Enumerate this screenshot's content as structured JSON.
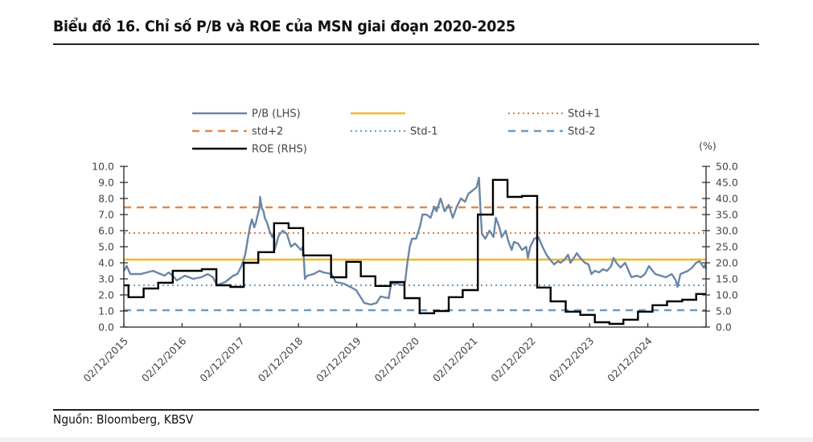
{
  "title": "Biểu đồ 16. Chỉ số P/B và ROE của MSN giai đoạn 2020-2025",
  "source": "Nguồn: Bloomberg, KBSV",
  "chart_data": {
    "type": "line",
    "title": "Biểu đồ 16. Chỉ số P/B và ROE của MSN giai đoạn 2020-2025",
    "xlabel": "",
    "ylabel_left": "P/B (LHS)",
    "ylabel_right": "(%)",
    "x_range": [
      2015.92,
      2025.92
    ],
    "ylim_left": [
      0,
      10
    ],
    "ylim_right": [
      0,
      50
    ],
    "yticks_left": [
      "0.0",
      "1.0",
      "2.0",
      "3.0",
      "4.0",
      "5.0",
      "6.0",
      "7.0",
      "8.0",
      "9.0",
      "10.0"
    ],
    "yticks_right": [
      "0.0",
      "5.0",
      "10.0",
      "15.0",
      "20.0",
      "25.0",
      "30.0",
      "35.0",
      "40.0",
      "45.0",
      "50.0"
    ],
    "xticks": [
      {
        "label": "02/12/2015",
        "year": 2015.92
      },
      {
        "label": "02/12/2016",
        "year": 2016.92
      },
      {
        "label": "02/12/2017",
        "year": 2017.92
      },
      {
        "label": "02/12/2018",
        "year": 2018.92
      },
      {
        "label": "02/12/2019",
        "year": 2019.92
      },
      {
        "label": "02/12/2020",
        "year": 2020.92
      },
      {
        "label": "02/12/2021",
        "year": 2021.92
      },
      {
        "label": "02/12/2022",
        "year": 2022.92
      },
      {
        "label": "02/12/2023",
        "year": 2023.92
      },
      {
        "label": "02/12/2024",
        "year": 2024.92
      }
    ],
    "grid": false,
    "legend_position": "top",
    "colors": {
      "pb": "#6a86a8",
      "mean": "#f2b826",
      "std_plus_1": "#e07b3c",
      "std_plus_2": "#e08a4c",
      "std_minus_1": "#6a9cc6",
      "std_minus_2": "#6a9cc6",
      "roe": "#000000"
    },
    "legend": [
      {
        "key": "pb",
        "label": "P/B (LHS)",
        "style": "solid"
      },
      {
        "key": "mean",
        "label": "",
        "style": "solid"
      },
      {
        "key": "std_plus_1",
        "label": "Std+1",
        "style": "dotted"
      },
      {
        "key": "std_plus_2",
        "label": "std+2",
        "style": "dashed"
      },
      {
        "key": "std_minus_1",
        "label": "Std-1",
        "style": "dotted"
      },
      {
        "key": "std_minus_2",
        "label": "Std-2",
        "style": "dashed"
      },
      {
        "key": "roe",
        "label": "ROE (RHS)",
        "style": "solid"
      }
    ],
    "reference_lines": {
      "mean": 4.2,
      "std_plus_1": 5.85,
      "std_plus_2": 7.45,
      "std_minus_1": 2.6,
      "std_minus_2": 1.05
    },
    "series": [
      {
        "name": "P/B (LHS)",
        "axis": "left",
        "points": [
          [
            2015.92,
            3.5
          ],
          [
            2015.97,
            3.8
          ],
          [
            2016.03,
            3.3
          ],
          [
            2016.21,
            3.3
          ],
          [
            2016.42,
            3.5
          ],
          [
            2016.55,
            3.3
          ],
          [
            2016.62,
            3.2
          ],
          [
            2016.69,
            3.4
          ],
          [
            2016.76,
            3.2
          ],
          [
            2016.83,
            2.9
          ],
          [
            2016.97,
            3.2
          ],
          [
            2017.11,
            3.0
          ],
          [
            2017.25,
            3.1
          ],
          [
            2017.36,
            3.3
          ],
          [
            2017.45,
            3.1
          ],
          [
            2017.52,
            2.6
          ],
          [
            2017.66,
            2.8
          ],
          [
            2017.8,
            3.2
          ],
          [
            2017.87,
            3.3
          ],
          [
            2017.94,
            3.8
          ],
          [
            2017.98,
            4.2
          ],
          [
            2018.01,
            4.6
          ],
          [
            2018.05,
            5.5
          ],
          [
            2018.09,
            6.3
          ],
          [
            2018.12,
            6.7
          ],
          [
            2018.16,
            6.2
          ],
          [
            2018.19,
            6.5
          ],
          [
            2018.22,
            7.0
          ],
          [
            2018.25,
            7.4
          ],
          [
            2018.26,
            8.1
          ],
          [
            2018.29,
            7.4
          ],
          [
            2018.32,
            7.2
          ],
          [
            2018.34,
            6.8
          ],
          [
            2018.38,
            6.5
          ],
          [
            2018.42,
            6.0
          ],
          [
            2018.47,
            5.6
          ],
          [
            2018.5,
            5.9
          ],
          [
            2018.51,
            4.8
          ],
          [
            2018.58,
            5.7
          ],
          [
            2018.65,
            6.0
          ],
          [
            2018.72,
            5.8
          ],
          [
            2018.79,
            5.0
          ],
          [
            2018.86,
            5.2
          ],
          [
            2018.96,
            4.8
          ],
          [
            2019.0,
            5.0
          ],
          [
            2019.03,
            3.0
          ],
          [
            2019.07,
            3.2
          ],
          [
            2019.18,
            3.3
          ],
          [
            2019.28,
            3.5
          ],
          [
            2019.35,
            3.4
          ],
          [
            2019.49,
            3.3
          ],
          [
            2019.56,
            2.8
          ],
          [
            2019.7,
            2.7
          ],
          [
            2019.81,
            2.5
          ],
          [
            2019.91,
            2.3
          ],
          [
            2019.98,
            1.9
          ],
          [
            2020.05,
            1.5
          ],
          [
            2020.16,
            1.4
          ],
          [
            2020.26,
            1.5
          ],
          [
            2020.33,
            1.9
          ],
          [
            2020.47,
            1.8
          ],
          [
            2020.51,
            2.7
          ],
          [
            2020.61,
            2.7
          ],
          [
            2020.71,
            2.6
          ],
          [
            2020.75,
            2.8
          ],
          [
            2020.79,
            4.0
          ],
          [
            2020.83,
            5.0
          ],
          [
            2020.87,
            5.5
          ],
          [
            2020.94,
            5.5
          ],
          [
            2021.01,
            6.3
          ],
          [
            2021.05,
            7.0
          ],
          [
            2021.12,
            7.0
          ],
          [
            2021.19,
            6.8
          ],
          [
            2021.25,
            7.5
          ],
          [
            2021.29,
            7.2
          ],
          [
            2021.36,
            8.0
          ],
          [
            2021.43,
            7.2
          ],
          [
            2021.5,
            7.6
          ],
          [
            2021.57,
            6.8
          ],
          [
            2021.64,
            7.5
          ],
          [
            2021.71,
            8.0
          ],
          [
            2021.78,
            7.8
          ],
          [
            2021.84,
            8.3
          ],
          [
            2021.91,
            8.5
          ],
          [
            2021.98,
            8.7
          ],
          [
            2022.02,
            9.3
          ],
          [
            2022.05,
            7.0
          ],
          [
            2022.07,
            5.8
          ],
          [
            2022.13,
            5.5
          ],
          [
            2022.2,
            6.0
          ],
          [
            2022.27,
            5.6
          ],
          [
            2022.31,
            6.8
          ],
          [
            2022.37,
            6.2
          ],
          [
            2022.41,
            5.6
          ],
          [
            2022.48,
            6.0
          ],
          [
            2022.52,
            5.4
          ],
          [
            2022.58,
            4.8
          ],
          [
            2022.62,
            5.3
          ],
          [
            2022.69,
            5.2
          ],
          [
            2022.76,
            4.8
          ],
          [
            2022.83,
            5.0
          ],
          [
            2022.86,
            4.3
          ],
          [
            2022.9,
            5.0
          ],
          [
            2022.97,
            5.5
          ],
          [
            2023.04,
            5.6
          ],
          [
            2023.11,
            5.0
          ],
          [
            2023.18,
            4.5
          ],
          [
            2023.24,
            4.2
          ],
          [
            2023.31,
            3.9
          ],
          [
            2023.38,
            4.1
          ],
          [
            2023.42,
            4.0
          ],
          [
            2023.49,
            4.2
          ],
          [
            2023.55,
            4.5
          ],
          [
            2023.59,
            4.0
          ],
          [
            2023.63,
            4.2
          ],
          [
            2023.7,
            4.6
          ],
          [
            2023.76,
            4.3
          ],
          [
            2023.84,
            4.0
          ],
          [
            2023.9,
            3.9
          ],
          [
            2023.95,
            3.3
          ],
          [
            2024.01,
            3.5
          ],
          [
            2024.08,
            3.4
          ],
          [
            2024.15,
            3.6
          ],
          [
            2024.22,
            3.5
          ],
          [
            2024.29,
            3.8
          ],
          [
            2024.33,
            4.3
          ],
          [
            2024.38,
            4.0
          ],
          [
            2024.45,
            3.7
          ],
          [
            2024.53,
            4.0
          ],
          [
            2024.59,
            3.5
          ],
          [
            2024.64,
            3.1
          ],
          [
            2024.73,
            3.2
          ],
          [
            2024.8,
            3.1
          ],
          [
            2024.87,
            3.3
          ],
          [
            2024.94,
            3.8
          ],
          [
            2024.98,
            3.6
          ],
          [
            2025.05,
            3.3
          ],
          [
            2025.14,
            3.2
          ],
          [
            2025.23,
            3.1
          ],
          [
            2025.33,
            3.3
          ],
          [
            2025.4,
            2.9
          ],
          [
            2025.43,
            2.5
          ],
          [
            2025.48,
            3.3
          ],
          [
            2025.61,
            3.5
          ],
          [
            2025.68,
            3.7
          ],
          [
            2025.75,
            4.0
          ],
          [
            2025.81,
            4.1
          ],
          [
            2025.88,
            3.7
          ],
          [
            2025.91,
            3.9
          ],
          [
            2025.92,
            3.6
          ]
        ]
      },
      {
        "name": "ROE (RHS)",
        "axis": "right",
        "type": "step",
        "steps": [
          [
            2015.92,
            13.0
          ],
          [
            2016.0,
            9.3
          ],
          [
            2016.26,
            12.0
          ],
          [
            2016.51,
            13.8
          ],
          [
            2016.76,
            17.5
          ],
          [
            2017.26,
            18.0
          ],
          [
            2017.51,
            13.0
          ],
          [
            2017.75,
            12.5
          ],
          [
            2017.98,
            20.0
          ],
          [
            2018.23,
            23.3
          ],
          [
            2018.5,
            32.3
          ],
          [
            2018.75,
            30.8
          ],
          [
            2019.0,
            22.3
          ],
          [
            2019.48,
            15.5
          ],
          [
            2019.74,
            20.3
          ],
          [
            2019.99,
            15.8
          ],
          [
            2020.24,
            12.8
          ],
          [
            2020.5,
            14.0
          ],
          [
            2020.74,
            9.0
          ],
          [
            2021.0,
            4.3
          ],
          [
            2021.25,
            5.0
          ],
          [
            2021.5,
            9.3
          ],
          [
            2021.74,
            11.5
          ],
          [
            2022.0,
            35.0
          ],
          [
            2022.26,
            45.8
          ],
          [
            2022.51,
            40.5
          ],
          [
            2022.76,
            40.8
          ],
          [
            2023.02,
            12.3
          ],
          [
            2023.25,
            8.0
          ],
          [
            2023.51,
            4.8
          ],
          [
            2023.76,
            3.8
          ],
          [
            2024.01,
            1.5
          ],
          [
            2024.26,
            1.0
          ],
          [
            2024.5,
            2.3
          ],
          [
            2024.75,
            4.8
          ],
          [
            2025.0,
            6.8
          ],
          [
            2025.25,
            8.0
          ],
          [
            2025.51,
            8.5
          ],
          [
            2025.75,
            10.3
          ]
        ],
        "end": 2025.92
      }
    ]
  }
}
